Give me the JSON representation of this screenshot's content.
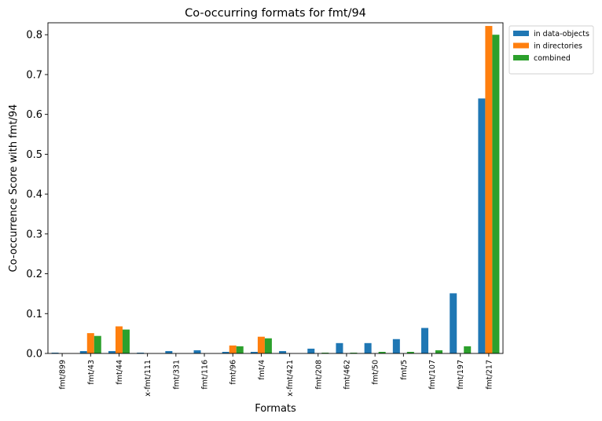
{
  "chart_data": {
    "type": "bar",
    "title": "Co-occurring formats for fmt/94",
    "xlabel": "Formats",
    "ylabel": "Co-occurrence Score with fmt/94",
    "ylim": [
      0,
      0.83
    ],
    "yticks": [
      0.0,
      0.1,
      0.2,
      0.3,
      0.4,
      0.5,
      0.6,
      0.7,
      0.8
    ],
    "ytick_labels": [
      "0.0",
      "0.1",
      "0.2",
      "0.3",
      "0.4",
      "0.5",
      "0.6",
      "0.7",
      "0.8"
    ],
    "legend_position": "top-right outside",
    "grid": false,
    "categories": [
      "fmt/899",
      "fmt/43",
      "fmt/44",
      "x-fmt/111",
      "fmt/331",
      "fmt/116",
      "fmt/96",
      "fmt/4",
      "x-fmt/421",
      "fmt/208",
      "fmt/462",
      "fmt/50",
      "fmt/5",
      "fmt/107",
      "fmt/197",
      "fmt/217"
    ],
    "series": [
      {
        "name": "in data-objects",
        "color": "#1f77b4",
        "values": [
          0.002,
          0.006,
          0.006,
          0.002,
          0.006,
          0.008,
          0.004,
          0.004,
          0.006,
          0.012,
          0.026,
          0.026,
          0.036,
          0.064,
          0.151,
          0.64
        ]
      },
      {
        "name": "in directories",
        "color": "#ff7f0e",
        "values": [
          0.0,
          0.051,
          0.068,
          0.0,
          0.0,
          0.0,
          0.02,
          0.042,
          0.0,
          0.0,
          0.0,
          0.0,
          0.0,
          0.0,
          0.0,
          0.822
        ]
      },
      {
        "name": "combined",
        "color": "#2ca02c",
        "values": [
          0.0,
          0.044,
          0.06,
          0.0,
          0.0,
          0.0,
          0.018,
          0.038,
          0.0,
          0.002,
          0.002,
          0.004,
          0.004,
          0.008,
          0.018,
          0.8
        ]
      }
    ]
  }
}
